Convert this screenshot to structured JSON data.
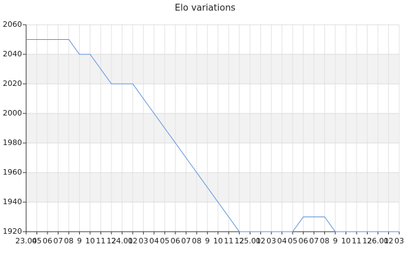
{
  "chart_data": {
    "type": "line",
    "title": "Elo variations",
    "categories": [
      "23.04",
      "05",
      "06",
      "07",
      "08",
      "9",
      "10",
      "11",
      "12",
      "24.01",
      "02",
      "03",
      "04",
      "05",
      "06",
      "07",
      "08",
      "9",
      "10",
      "11",
      "12",
      "25.01",
      "02",
      "03",
      "04",
      "05",
      "06",
      "07",
      "08",
      "9",
      "10",
      "11",
      "12",
      "26.01",
      "02",
      "03"
    ],
    "series": [
      {
        "name": "Elo",
        "color": "#5b8fd9",
        "values": [
          2050,
          2050,
          2050,
          2050,
          2050,
          2040,
          2040,
          2030,
          2020,
          2020,
          2020,
          2010,
          2000,
          1990,
          1980,
          1970,
          1960,
          1950,
          1940,
          1930,
          1920,
          1920,
          1920,
          1920,
          1920,
          1920,
          1930,
          1930,
          1930,
          1920,
          1920,
          1920,
          1920,
          1920,
          1920,
          1920
        ]
      }
    ],
    "ylim": [
      1920,
      2060
    ],
    "yticks": [
      1920,
      1940,
      1960,
      1980,
      2000,
      2020,
      2040,
      2060
    ],
    "grid": true
  }
}
